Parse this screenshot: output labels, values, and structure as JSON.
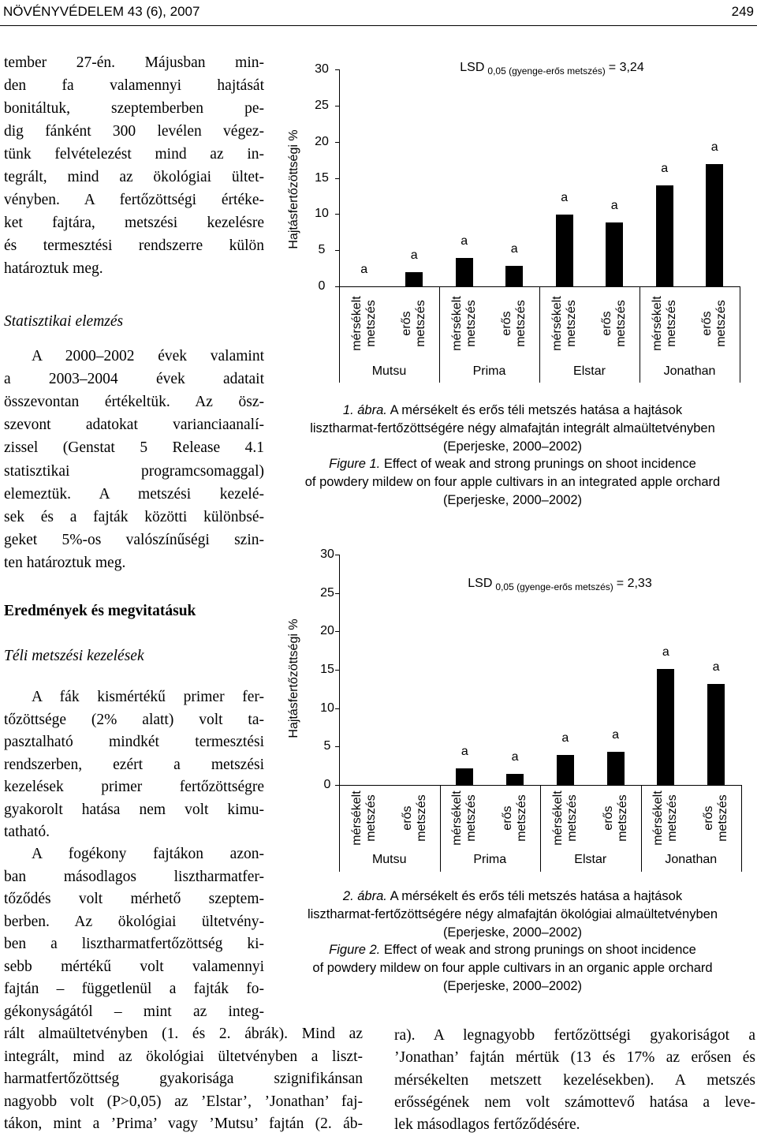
{
  "header": {
    "journal": "NÖVÉNYVÉDELEM 43 (6), 2007",
    "page": "249"
  },
  "body": {
    "headings": [
      "Statisztikai elemzés",
      "Eredmények és megvitatásuk",
      "Téli metszési kezelések"
    ],
    "paragraphs": [
      [
        "tember 27-én. Májusban min-",
        "den fa valamennyi hajtását",
        "bonitáltuk, szeptemberben pe-",
        "dig fánként 300 levélen végez-",
        "tünk felvételezést mind az in-",
        "tegrált, mind az ökológiai ültet-",
        "vényben. A fertőzöttségi értéke-",
        "ket fajtára, metszési kezelésre",
        "és termesztési rendszerre külön",
        "határoztuk meg."
      ],
      [
        "A 2000–2002 évek valamint",
        "a 2003–2004 évek adatait",
        "összevontan értékeltük. Az ösz-",
        "szevont adatokat varianciaanalí-",
        "zissel (Genstat 5 Release 4.1",
        "statisztikai programcsomaggal)",
        "elemeztük. A metszési kezelé-",
        "sek és a fajták közötti különbsé-",
        "geket 5%-os valószínűségi szin-",
        "ten határoztuk meg."
      ],
      [
        "A fák kismértékű primer fer-",
        "tőzöttsége (2% alatt) volt ta-",
        "pasztalható mindkét termesztési",
        "rendszerben, ezért a metszési",
        "kezelések primer fertőzöttségre",
        "gyakorolt hatása nem volt kimu-",
        "tatható."
      ],
      [
        "A fogékony fajtákon azon-",
        "ban másodlagos lisztharmatfer-",
        "tőződés volt mérhető szeptem-",
        "berben. Az ökológiai ültetvény-",
        "ben a lisztharmatfertőzöttség ki-",
        "sebb mértékű volt valamennyi",
        "fajtán – függetlenül a fajták fo-",
        "gékonyságától – mint az integ-",
        "rált almaültetvényben (1. és 2. ábrák). Mind az",
        "integrált, mind az ökológiai ültetvényben a liszt-",
        "harmatfertőzöttség gyakorisága szignifikánsan",
        "nagyobb volt (P>0,05) az ’Elstar’, ’Jonathan’ faj-",
        "tákon, mint a ’Prima’ vagy ’Mutsu’ fajtán (2. áb-"
      ],
      [
        "ra). A legnagyobb fertőzöttségi gyakoriságot a",
        "’Jonathan’ fajtán mértük (13 és 17% az erősen és",
        "mérsékelten metszett kezelésekben). A metszés",
        "erősségének nem volt számottevő hatása a leve-",
        "lek másodlagos fertőződésére."
      ]
    ]
  },
  "chart_data": [
    {
      "type": "bar",
      "y_label": "Hajtásfertőzöttségi %",
      "lsd": {
        "label": "LSD",
        "subscript": "0,05 (gyenge-erős metszés)",
        "value_text": "= 3,24"
      },
      "categories": [
        "mérsékelt metszés",
        "erős metszés",
        "mérsékelt metszés",
        "erős metszés",
        "mérsékelt metszés",
        "erős metszés",
        "mérsékelt metszés",
        "erős metszés"
      ],
      "groups": [
        "Mutsu",
        "Prima",
        "Elstar",
        "Jonathan"
      ],
      "values": [
        0,
        2.0,
        3.9,
        2.8,
        9.9,
        8.8,
        14.0,
        16.9
      ],
      "annotations": [
        "a",
        "a",
        "a",
        "a",
        "a",
        "a",
        "a",
        "a"
      ],
      "color": "#000000",
      "ylim": [
        0,
        30
      ],
      "yticks": [
        0,
        5,
        10,
        15,
        20,
        25,
        30
      ],
      "caption": {
        "hu_label": "1. ábra.",
        "hu_lines": [
          "A mérsékelt és erős téli metszés hatása a hajtások",
          "lisztharmat-fertőzöttségére négy almafajtán integrált almaültetvényben",
          "(Eperjeske, 2000–2002)"
        ],
        "en_label": "Figure 1.",
        "en_lines": [
          "Effect of weak and strong prunings on shoot incidence",
          "of powdery mildew on four apple cultivars in an integrated apple orchard",
          "(Eperjeske, 2000–2002)"
        ]
      }
    },
    {
      "type": "bar",
      "y_label": "Hajtásfertőzöttségi %",
      "lsd": {
        "label": "LSD",
        "subscript": "0,05 (gyenge-erős metszés)",
        "value_text": "= 2,33"
      },
      "categories": [
        "mérsékelt metszés",
        "erős metszés",
        "mérsékelt metszés",
        "erős metszés",
        "mérsékelt metszés",
        "erős metszés",
        "mérsékelt metszés",
        "erős metszés"
      ],
      "groups": [
        "Mutsu",
        "Prima",
        "Elstar",
        "Jonathan"
      ],
      "values": [
        0,
        0,
        2.2,
        1.4,
        3.9,
        4.3,
        15.1,
        13.1
      ],
      "annotations": [
        null,
        null,
        "a",
        "a",
        "a",
        "a",
        "a",
        "a"
      ],
      "color": "#000000",
      "ylim": [
        0,
        30
      ],
      "yticks": [
        0,
        5,
        10,
        15,
        20,
        25,
        30
      ],
      "caption": {
        "hu_label": "2. ábra.",
        "hu_lines": [
          "A mérsékelt és erős téli metszés hatása a hajtások",
          "lisztharmat-fertőzöttségére négy almafajtán ökológiai almaültetvényben",
          "(Eperjeske, 2000–2002)"
        ],
        "en_label": "Figure 2.",
        "en_lines": [
          "Effect of weak and strong prunings on shoot incidence",
          "of powdery mildew on four apple cultivars in an organic apple orchard",
          "(Eperjeske, 2000–2002)"
        ]
      }
    }
  ]
}
